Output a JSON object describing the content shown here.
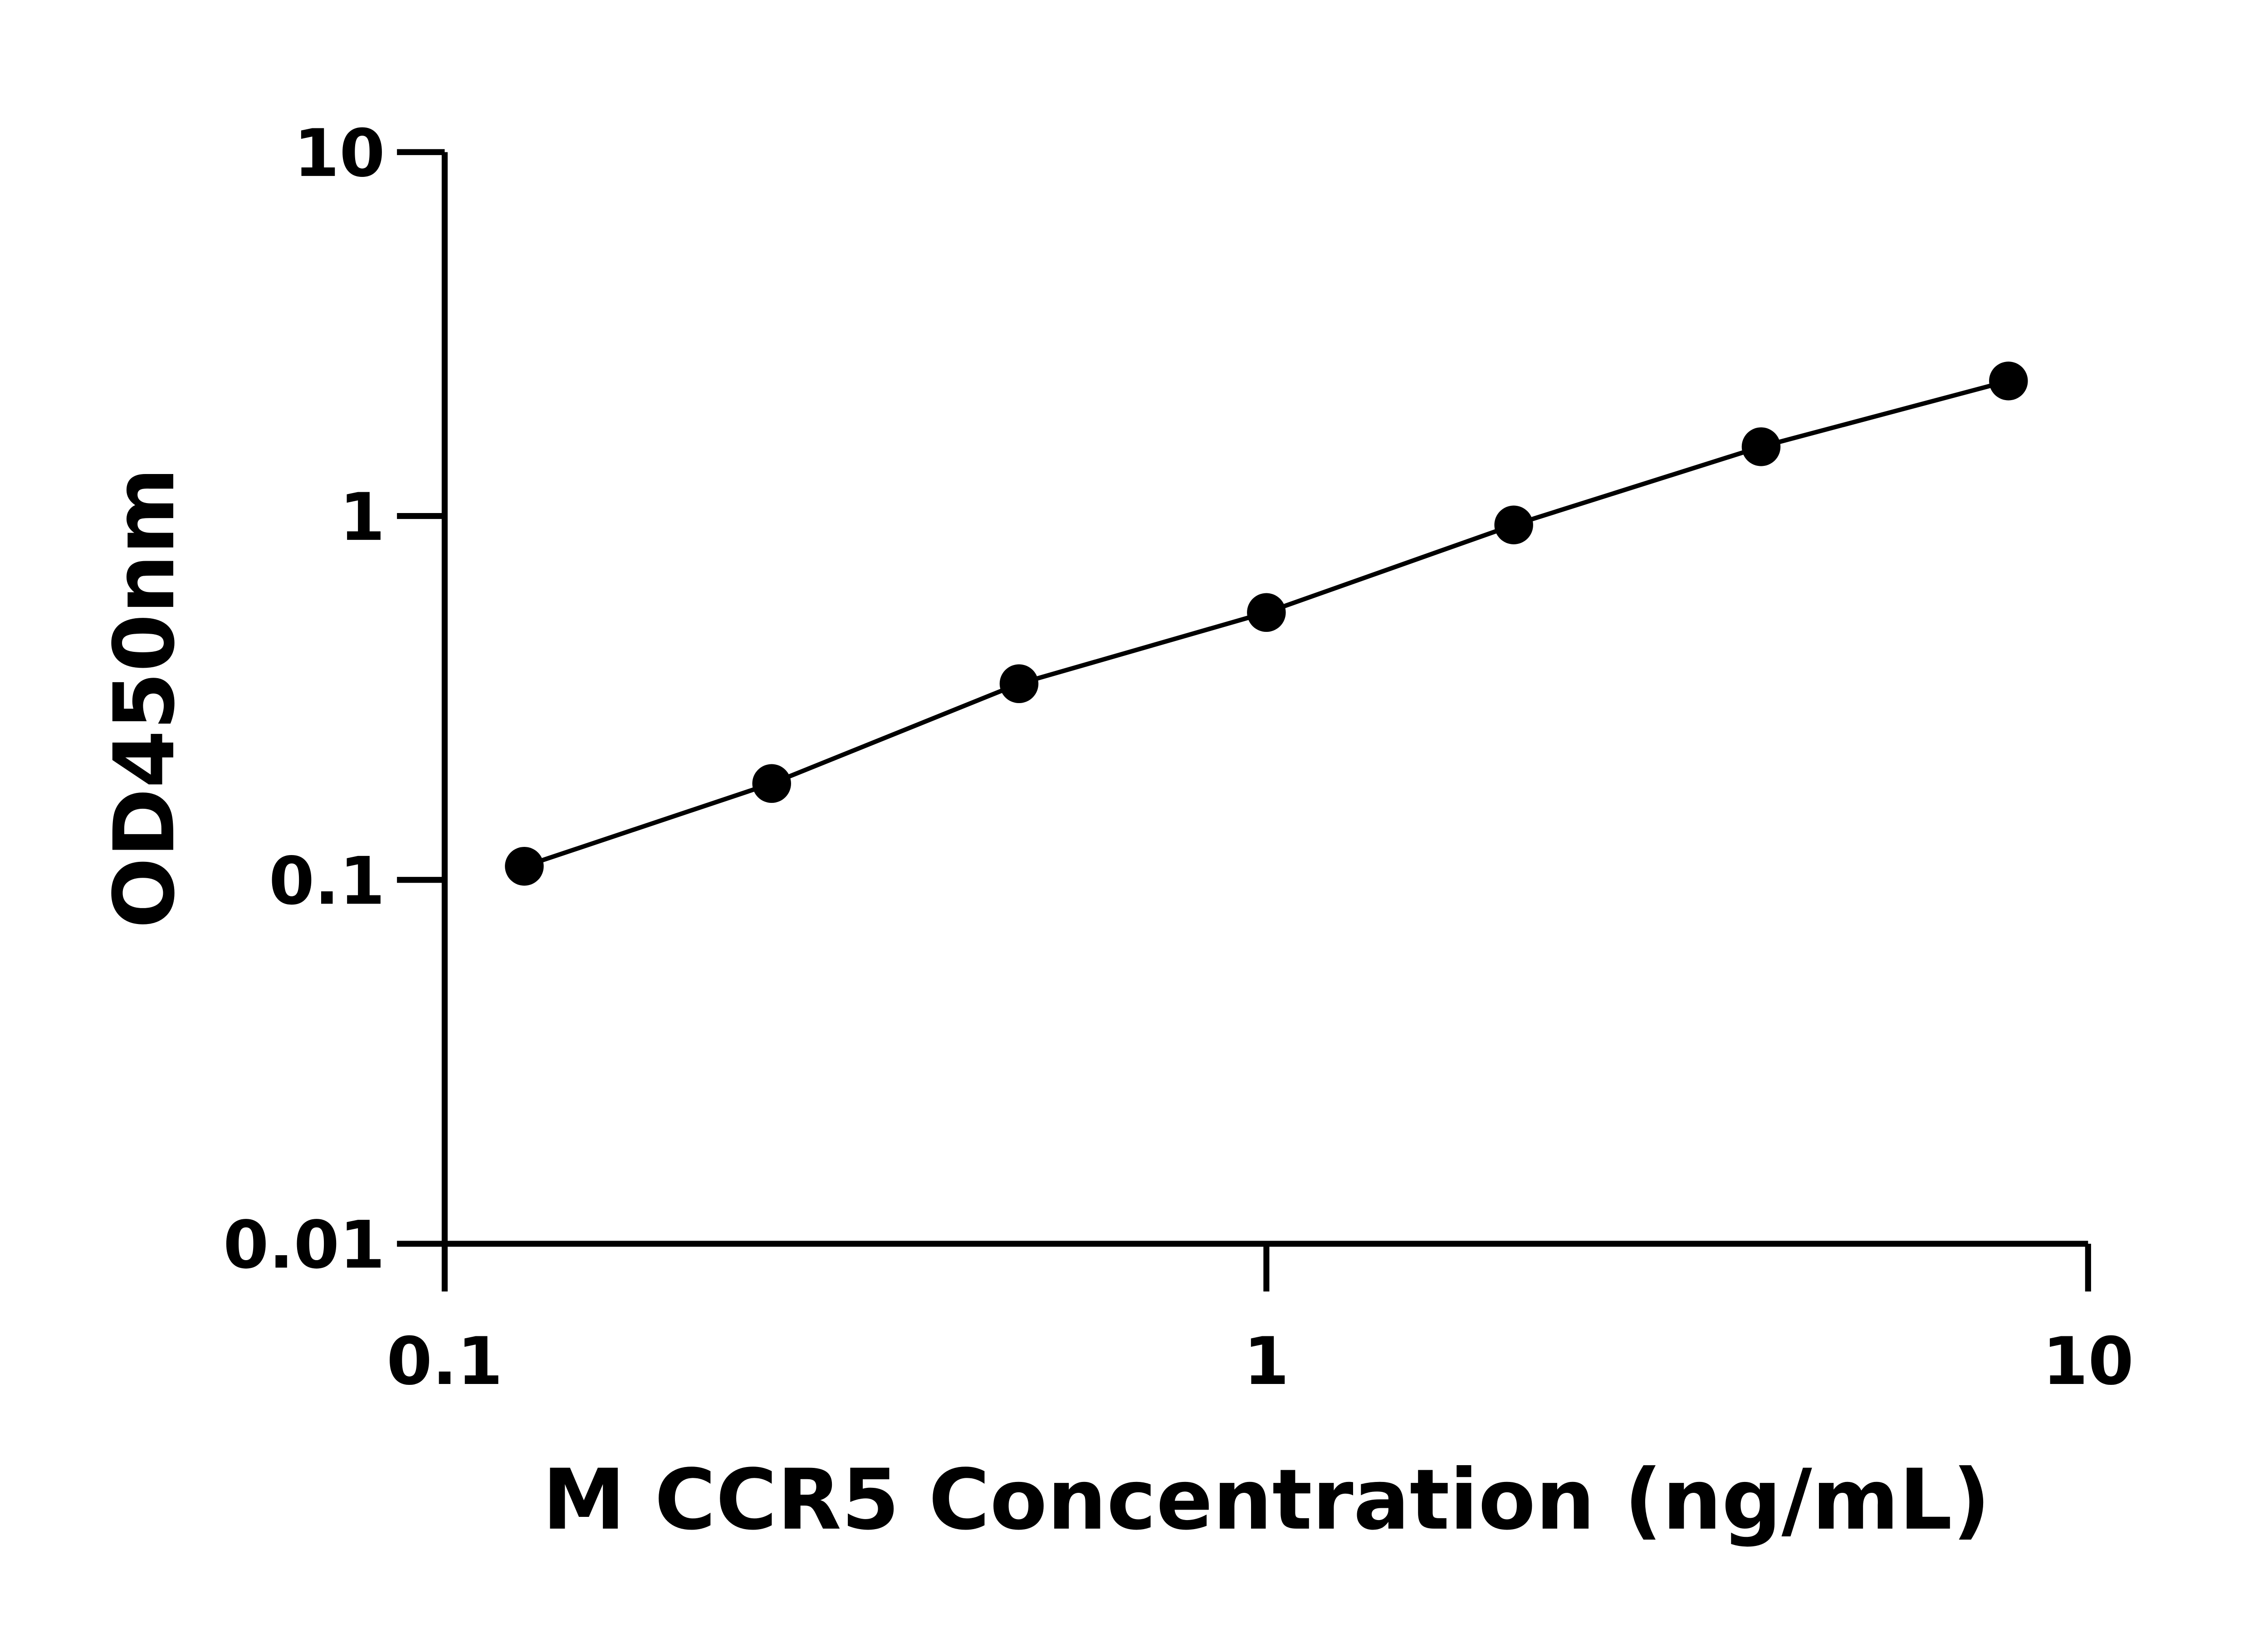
{
  "chart_data": {
    "type": "line",
    "title": "",
    "xlabel": "M CCR5 Concentration (ng/mL)",
    "ylabel": "OD450nm",
    "x_scale": "log",
    "y_scale": "log",
    "xlim": [
      0.1,
      10
    ],
    "ylim": [
      0.01,
      10
    ],
    "x_ticks": [
      0.1,
      1,
      10
    ],
    "x_tick_labels": [
      "0.1",
      "1",
      "10"
    ],
    "y_ticks": [
      0.01,
      0.1,
      1,
      10
    ],
    "y_tick_labels": [
      "0.01",
      "0.1",
      "1",
      "10"
    ],
    "grid": false,
    "legend": "none",
    "series": [
      {
        "x": [
          0.125,
          0.25,
          0.5,
          1,
          2,
          4,
          8
        ],
        "y": [
          0.109,
          0.184,
          0.346,
          0.543,
          0.945,
          1.55,
          2.35
        ],
        "color": "#000000",
        "marker": "circle"
      }
    ]
  }
}
